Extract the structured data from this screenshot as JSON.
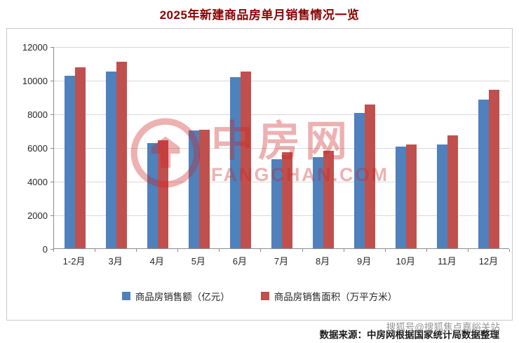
{
  "title": "2025年新建商品房单月销售情况一览",
  "watermark": {
    "brand": "中房网",
    "domain": "FANGCHAN.COM"
  },
  "footer": {
    "source": "数据来源：中房网根据国家统计局数据整理",
    "overlay": "搜狐号@搜狐焦点嘉峪关站"
  },
  "colors": {
    "sales_value_blue": "#4f81bd",
    "sales_area_red": "#c0504d",
    "title_red": "#8b0000",
    "watermark_red": "#cc2222",
    "gridline": "#d9d9d9"
  },
  "chart_data": {
    "type": "bar",
    "title": "2025年新建商品房单月销售情况一览",
    "xlabel": "",
    "ylabel": "",
    "categories": [
      "1-2月",
      "3月",
      "4月",
      "5月",
      "6月",
      "7月",
      "8月",
      "9月",
      "10月",
      "11月",
      "12月"
    ],
    "series": [
      {
        "name": "商品房销售额（亿元）",
        "color": "#4f81bd",
        "values": [
          10250,
          10500,
          6250,
          7000,
          10150,
          5300,
          5400,
          8050,
          6050,
          6150,
          8850
        ]
      },
      {
        "name": "商品房销售面积（万平方米）",
        "color": "#c0504d",
        "values": [
          10750,
          11100,
          6400,
          7050,
          10500,
          5700,
          5800,
          8550,
          6150,
          6700,
          9400
        ]
      }
    ],
    "ylim": [
      0,
      12000
    ],
    "ytick_step": 2000,
    "yticks": [
      0,
      2000,
      4000,
      6000,
      8000,
      10000,
      12000
    ],
    "grid": true,
    "legend_position": "bottom"
  }
}
